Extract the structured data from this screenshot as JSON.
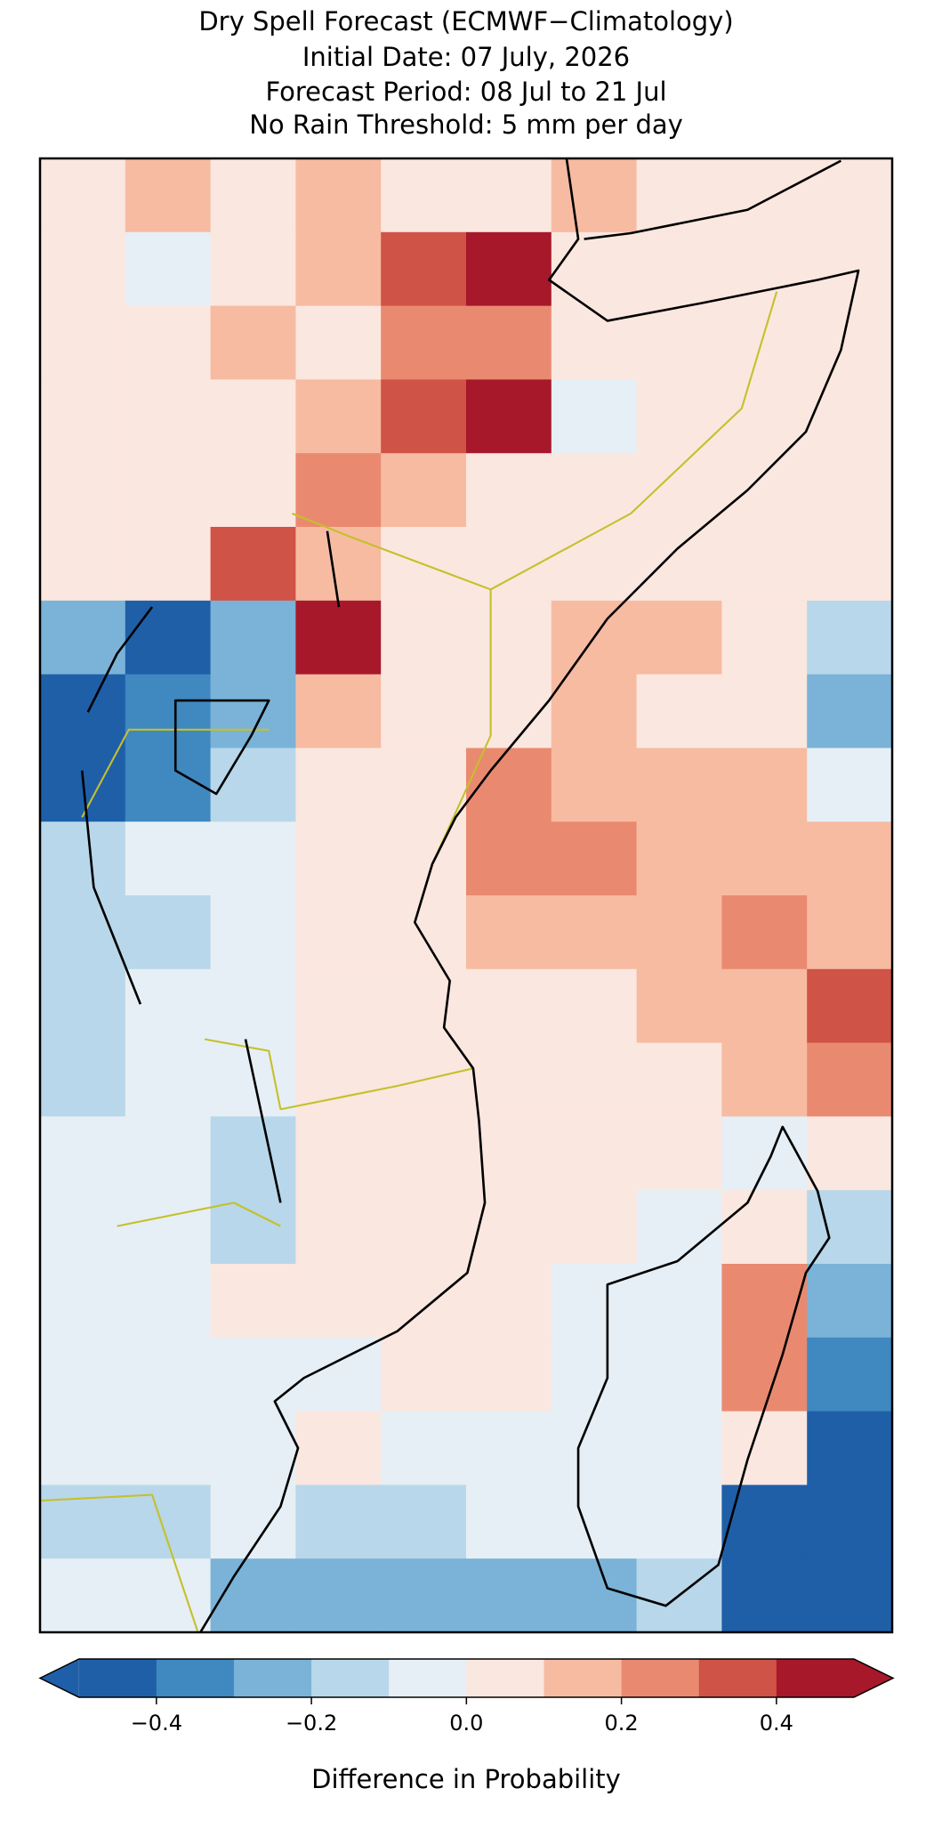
{
  "chart_data": {
    "type": "heatmap",
    "title": "Dry Spell Forecast (ECMWF−Climatology)",
    "subtitle": [
      "Initial Date: 07 July, 2026",
      "Forecast Period: 08 Jul to 21 Jul",
      "No Rain Threshold: 5 mm per day"
    ],
    "colorbar_label": "Difference in Probability",
    "levels": [
      -0.5,
      -0.4,
      -0.3,
      -0.2,
      -0.1,
      0,
      0.1,
      0.2,
      0.3,
      0.4,
      0.5
    ],
    "colors": [
      "#1f5fa8",
      "#3f88c0",
      "#7ab3d7",
      "#b8d7ea",
      "#e6eff5",
      "#fae7df",
      "#f7bba2",
      "#e98a70",
      "#cf5347",
      "#a7182a"
    ],
    "extend": "both",
    "ticks": [
      {
        "value": -0.4,
        "label": "−0.4"
      },
      {
        "value": -0.2,
        "label": "−0.2"
      },
      {
        "value": 0,
        "label": "0.0"
      },
      0.2,
      0.4
    ],
    "values": [
      [
        0.05,
        0.15,
        0.05,
        0.15,
        0.05,
        0.05,
        0.15,
        0.05,
        0.05,
        0.05
      ],
      [
        0.05,
        -0.05,
        0.05,
        0.15,
        0.35,
        0.45,
        0.05,
        0.05,
        0.05,
        0.05
      ],
      [
        0.05,
        0.05,
        0.15,
        0.05,
        0.25,
        0.25,
        0.05,
        0.05,
        0.05,
        0.05
      ],
      [
        0.05,
        0.05,
        0.05,
        0.15,
        0.35,
        0.45,
        -0.05,
        0.05,
        0.05,
        0.05
      ],
      [
        0.05,
        0.05,
        0.05,
        0.25,
        0.15,
        0.05,
        0.05,
        0.05,
        0.05,
        0.05
      ],
      [
        0.05,
        0.05,
        0.35,
        0.15,
        0.05,
        0.05,
        0.05,
        0.05,
        0.05,
        0.05
      ],
      [
        -0.25,
        -0.45,
        -0.25,
        0.45,
        0.05,
        0.05,
        0.15,
        0.15,
        0.05,
        -0.15
      ],
      [
        -0.45,
        -0.35,
        -0.25,
        0.15,
        0.05,
        0.05,
        0.15,
        0.05,
        0.05,
        -0.25
      ],
      [
        -0.45,
        -0.35,
        -0.15,
        0.05,
        0.05,
        0.25,
        0.15,
        0.15,
        0.15,
        -0.05
      ],
      [
        -0.15,
        -0.05,
        -0.05,
        0.05,
        0.05,
        0.25,
        0.25,
        0.15,
        0.15,
        0.15
      ],
      [
        -0.15,
        -0.15,
        -0.05,
        0.05,
        0.05,
        0.15,
        0.15,
        0.15,
        0.25,
        0.15
      ],
      [
        -0.15,
        -0.05,
        -0.05,
        0.05,
        0.05,
        0.05,
        0.05,
        0.15,
        0.15,
        0.35
      ],
      [
        -0.15,
        -0.05,
        -0.05,
        0.05,
        0.05,
        0.05,
        0.05,
        0.05,
        0.15,
        0.25
      ],
      [
        -0.05,
        -0.05,
        -0.15,
        0.05,
        0.05,
        0.05,
        0.05,
        0.05,
        -0.05,
        0.05
      ],
      [
        -0.05,
        -0.05,
        -0.15,
        0.05,
        0.05,
        0.05,
        0.05,
        -0.05,
        0.05,
        -0.15
      ],
      [
        -0.05,
        -0.05,
        0.05,
        0.05,
        0.05,
        0.05,
        -0.05,
        -0.05,
        0.25,
        -0.25
      ],
      [
        -0.05,
        -0.05,
        -0.05,
        -0.05,
        0.05,
        0.05,
        -0.05,
        -0.05,
        0.25,
        -0.35
      ],
      [
        -0.05,
        -0.05,
        -0.05,
        0.05,
        -0.05,
        -0.05,
        -0.05,
        -0.05,
        0.05,
        -0.45
      ],
      [
        -0.15,
        -0.15,
        -0.05,
        -0.15,
        -0.15,
        -0.05,
        -0.05,
        -0.05,
        -0.45,
        -0.45
      ],
      [
        -0.05,
        -0.05,
        -0.25,
        -0.25,
        -0.25,
        -0.25,
        -0.25,
        -0.15,
        -0.45,
        -0.45
      ]
    ]
  }
}
